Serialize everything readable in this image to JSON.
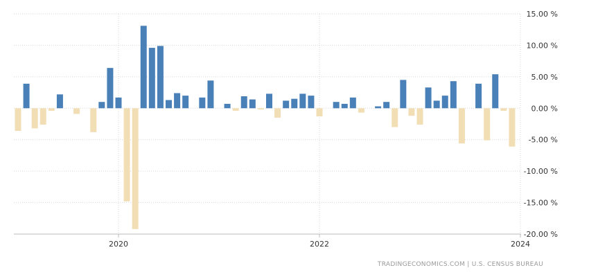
{
  "chart_data": {
    "type": "bar",
    "title": "",
    "xlabel": "",
    "ylabel": "",
    "ylim": [
      -20,
      15
    ],
    "y_ticks": [
      15,
      10,
      5,
      0,
      -5,
      -10,
      -15,
      -20
    ],
    "y_tick_labels": [
      "15.00 %",
      "10.00 %",
      "5.00 %",
      "0.00 %",
      "-5.00 %",
      "-10.00 %",
      "-15.00 %",
      "-20.00 %"
    ],
    "x_ticks": [
      {
        "date": "2020-01",
        "label": "2020"
      },
      {
        "date": "2022-01",
        "label": "2022"
      },
      {
        "date": "2024-01",
        "label": "2024"
      }
    ],
    "grid": true,
    "positive_color": "#4a80b8",
    "negative_color": "#f2deb4",
    "x": [
      "2019-01",
      "2019-02",
      "2019-03",
      "2019-04",
      "2019-05",
      "2019-06",
      "2019-07",
      "2019-08",
      "2019-09",
      "2019-10",
      "2019-11",
      "2019-12",
      "2020-01",
      "2020-02",
      "2020-03",
      "2020-04",
      "2020-05",
      "2020-06",
      "2020-07",
      "2020-08",
      "2020-09",
      "2020-10",
      "2020-11",
      "2020-12",
      "2021-01",
      "2021-02",
      "2021-03",
      "2021-04",
      "2021-05",
      "2021-06",
      "2021-07",
      "2021-08",
      "2021-09",
      "2021-10",
      "2021-11",
      "2021-12",
      "2022-01",
      "2022-02",
      "2022-03",
      "2022-04",
      "2022-05",
      "2022-06",
      "2022-07",
      "2022-08",
      "2022-09",
      "2022-10",
      "2022-11",
      "2022-12",
      "2023-01",
      "2023-02",
      "2023-03",
      "2023-04",
      "2023-05",
      "2023-06",
      "2023-07",
      "2023-08",
      "2023-09",
      "2023-10",
      "2023-11",
      "2023-12",
      "2024-01"
    ],
    "values": [
      -3.6,
      3.9,
      -3.2,
      -2.6,
      -0.4,
      2.2,
      0,
      -0.9,
      0,
      -3.8,
      1.0,
      6.4,
      1.7,
      -14.8,
      -19.2,
      13.1,
      9.6,
      9.9,
      1.3,
      2.4,
      2.0,
      0,
      1.7,
      4.4,
      0,
      0.7,
      -0.4,
      1.9,
      1.4,
      -0.2,
      2.3,
      -1.5,
      1.2,
      1.5,
      2.3,
      2.0,
      -1.3,
      0,
      1.0,
      0.7,
      1.7,
      -0.7,
      0,
      0.3,
      1.0,
      -3.0,
      4.5,
      -1.2,
      -2.6,
      3.3,
      1.2,
      2.0,
      4.3,
      -5.6,
      0,
      3.9,
      -5.1,
      5.4,
      -0.4,
      -6.1,
      0
    ]
  },
  "source": "TRADINGECONOMICS.COM  |  U.S. CENSUS BUREAU"
}
